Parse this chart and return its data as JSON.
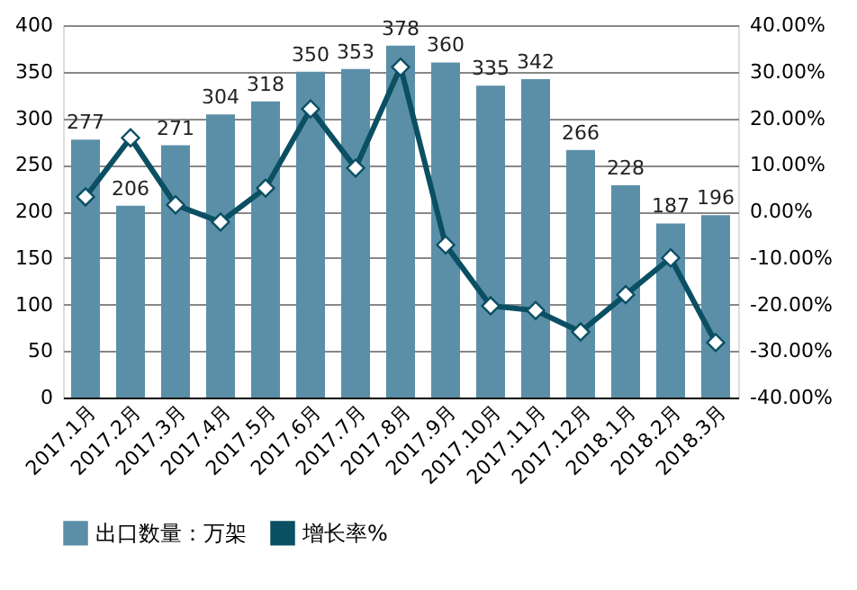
{
  "chart_data": {
    "type": "bar",
    "categories": [
      "2017.1月",
      "2017.2月",
      "2017.3月",
      "2017.4月",
      "2017.5月",
      "2017.6月",
      "2017.7月",
      "2017.8月",
      "2017.9月",
      "2017.10月",
      "2017.11月",
      "2017.12月",
      "2018.1月",
      "2018.2月",
      "2018.3月"
    ],
    "series": [
      {
        "name": "出口数量：万架",
        "color": "#5b8fa8",
        "values": [
          277,
          206,
          271,
          304,
          318,
          350,
          353,
          378,
          360,
          335,
          342,
          266,
          228,
          187,
          196
        ],
        "value_labels": [
          "277",
          "206",
          "271",
          "304",
          "318",
          "350",
          "353",
          "378",
          "360",
          "335",
          "342",
          "266",
          "228",
          "187",
          "196"
        ]
      },
      {
        "name": "增长率%",
        "type": "line",
        "axis": "y2",
        "color": "#0b4f63",
        "marker": "diamond",
        "values": [
          3.1,
          15.8,
          1.4,
          -2.3,
          5.0,
          22.0,
          9.3,
          31.0,
          -7.2,
          -20.3,
          -21.3,
          -25.9,
          -17.9,
          -10.0,
          -28.2
        ]
      }
    ],
    "ylim": [
      0,
      400
    ],
    "yticks": [
      0,
      50,
      100,
      150,
      200,
      250,
      300,
      350,
      400
    ],
    "y2lim": [
      -40,
      40
    ],
    "y2ticks": [
      {
        "value": -40,
        "label": "-40.00%"
      },
      {
        "value": -30,
        "label": "-30.00%"
      },
      {
        "value": -20,
        "label": "-20.00%"
      },
      {
        "value": -10,
        "label": "-10.00%"
      },
      {
        "value": 0,
        "label": "0.00%"
      },
      {
        "value": 10,
        "label": "10.00%"
      },
      {
        "value": 20,
        "label": "20.00%"
      },
      {
        "value": 30,
        "label": "30.00%"
      },
      {
        "value": 40,
        "label": "40.00%"
      }
    ],
    "grid": "y",
    "legend": "bottom"
  }
}
